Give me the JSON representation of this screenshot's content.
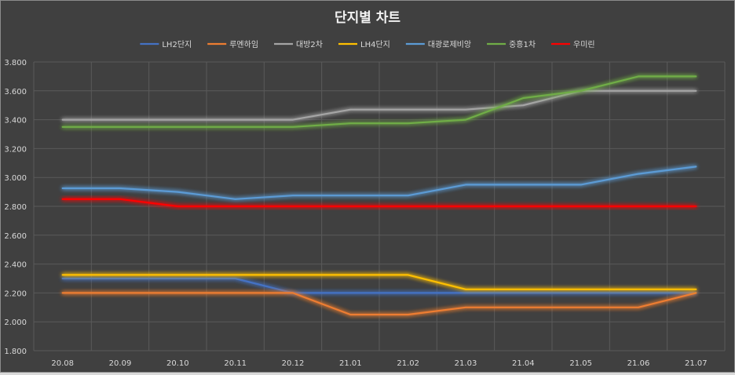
{
  "chart_data": {
    "type": "line",
    "title": "단지별 차트",
    "xlabel": "",
    "ylabel": "",
    "categories": [
      "20.08",
      "20.09",
      "20.10",
      "20.11",
      "20.12",
      "21.01",
      "21.02",
      "21.03",
      "21.04",
      "21.05",
      "21.06",
      "21.07"
    ],
    "ylim": [
      1.8,
      3.8
    ],
    "yticks": [
      "1.800",
      "2.000",
      "2.200",
      "2.400",
      "2.600",
      "2.800",
      "3.000",
      "3.200",
      "3.400",
      "3.600",
      "3.800"
    ],
    "grid": true,
    "legend_position": "top",
    "series": [
      {
        "name": "LH2단지",
        "color": "#4472c4",
        "values": [
          2.3,
          2.3,
          2.3,
          2.3,
          2.2,
          2.2,
          2.2,
          2.2,
          2.2,
          2.2,
          2.2,
          2.2
        ]
      },
      {
        "name": "루멘하임",
        "color": "#ed7d31",
        "values": [
          2.2,
          2.2,
          2.2,
          2.2,
          2.2,
          2.05,
          2.05,
          2.1,
          2.1,
          2.1,
          2.1,
          2.2
        ]
      },
      {
        "name": "대방2차",
        "color": "#a5a5a5",
        "values": [
          3.4,
          3.4,
          3.4,
          3.4,
          3.4,
          3.47,
          3.47,
          3.47,
          3.5,
          3.6,
          3.6,
          3.6
        ]
      },
      {
        "name": "LH4단지",
        "color": "#ffc000",
        "values": [
          2.325,
          2.325,
          2.325,
          2.325,
          2.325,
          2.325,
          2.325,
          2.225,
          2.225,
          2.225,
          2.225,
          2.225
        ]
      },
      {
        "name": "대광로제비앙",
        "color": "#5b9bd5",
        "values": [
          2.925,
          2.925,
          2.9,
          2.85,
          2.875,
          2.875,
          2.875,
          2.95,
          2.95,
          2.95,
          3.025,
          3.075
        ]
      },
      {
        "name": "중흥1차",
        "color": "#70ad47",
        "values": [
          3.35,
          3.35,
          3.35,
          3.35,
          3.35,
          3.375,
          3.375,
          3.4,
          3.55,
          3.6,
          3.7,
          3.7
        ]
      },
      {
        "name": "우미린",
        "color": "#ff0000",
        "values": [
          2.85,
          2.85,
          2.8,
          2.8,
          2.8,
          2.8,
          2.8,
          2.8,
          2.8,
          2.8,
          2.8,
          2.8
        ]
      }
    ]
  }
}
